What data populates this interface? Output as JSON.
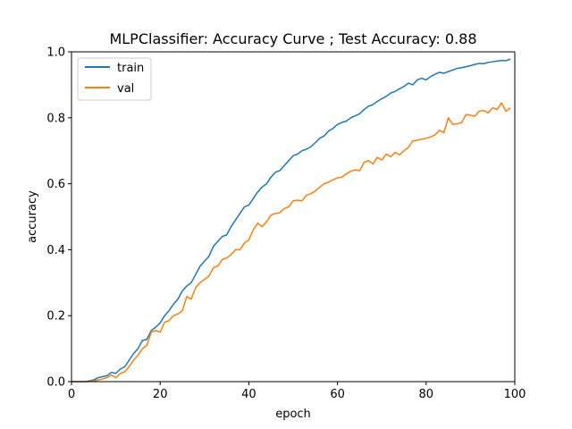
{
  "chart_data": {
    "type": "line",
    "title": "MLPClassifier: Accuracy Curve ; Test Accuracy: 0.88",
    "xlabel": "epoch",
    "ylabel": "accuracy",
    "xlim": [
      0,
      100
    ],
    "ylim": [
      0,
      1.0
    ],
    "xticks": [
      0,
      20,
      40,
      60,
      80,
      100
    ],
    "xtick_labels": [
      "0",
      "20",
      "40",
      "60",
      "80",
      "100"
    ],
    "yticks": [
      0,
      0.2,
      0.4,
      0.6,
      0.8,
      1.0
    ],
    "ytick_labels": [
      "0.0",
      "0.2",
      "0.4",
      "0.6",
      "0.8",
      "1.0"
    ],
    "grid": false,
    "legend_position": "upper-left",
    "x": [
      0,
      1,
      2,
      3,
      4,
      5,
      6,
      7,
      8,
      9,
      10,
      11,
      12,
      13,
      14,
      15,
      16,
      17,
      18,
      19,
      20,
      21,
      22,
      23,
      24,
      25,
      26,
      27,
      28,
      29,
      30,
      31,
      32,
      33,
      34,
      35,
      36,
      37,
      38,
      39,
      40,
      41,
      42,
      43,
      44,
      45,
      46,
      47,
      48,
      49,
      50,
      51,
      52,
      53,
      54,
      55,
      56,
      57,
      58,
      59,
      60,
      61,
      62,
      63,
      64,
      65,
      66,
      67,
      68,
      69,
      70,
      71,
      72,
      73,
      74,
      75,
      76,
      77,
      78,
      79,
      80,
      81,
      82,
      83,
      84,
      85,
      86,
      87,
      88,
      89,
      90,
      91,
      92,
      93,
      94,
      95,
      96,
      97,
      98,
      99
    ],
    "series": [
      {
        "name": "train",
        "color": "#1f77b4",
        "values": [
          0.0,
          0.0,
          0.0,
          0.0,
          0.002,
          0.005,
          0.012,
          0.015,
          0.018,
          0.028,
          0.025,
          0.038,
          0.045,
          0.065,
          0.085,
          0.1,
          0.125,
          0.128,
          0.155,
          0.165,
          0.178,
          0.2,
          0.215,
          0.235,
          0.25,
          0.275,
          0.29,
          0.3,
          0.325,
          0.35,
          0.365,
          0.38,
          0.41,
          0.425,
          0.44,
          0.445,
          0.47,
          0.49,
          0.51,
          0.53,
          0.535,
          0.555,
          0.575,
          0.59,
          0.6,
          0.62,
          0.635,
          0.64,
          0.655,
          0.67,
          0.685,
          0.69,
          0.7,
          0.705,
          0.712,
          0.725,
          0.738,
          0.745,
          0.76,
          0.768,
          0.78,
          0.786,
          0.79,
          0.8,
          0.806,
          0.812,
          0.825,
          0.835,
          0.84,
          0.85,
          0.858,
          0.865,
          0.875,
          0.88,
          0.888,
          0.895,
          0.905,
          0.9,
          0.915,
          0.92,
          0.915,
          0.925,
          0.932,
          0.938,
          0.935,
          0.94,
          0.945,
          0.95,
          0.952,
          0.955,
          0.958,
          0.962,
          0.965,
          0.964,
          0.968,
          0.97,
          0.972,
          0.974,
          0.973,
          0.978
        ]
      },
      {
        "name": "val",
        "color": "#ff7f0e",
        "values": [
          0.0,
          0.0,
          0.0,
          0.0,
          0.0,
          0.002,
          0.005,
          0.008,
          0.012,
          0.02,
          0.012,
          0.025,
          0.03,
          0.045,
          0.065,
          0.08,
          0.1,
          0.11,
          0.15,
          0.155,
          0.15,
          0.18,
          0.185,
          0.2,
          0.205,
          0.215,
          0.258,
          0.25,
          0.285,
          0.3,
          0.31,
          0.32,
          0.345,
          0.35,
          0.37,
          0.375,
          0.385,
          0.4,
          0.4,
          0.42,
          0.43,
          0.46,
          0.48,
          0.47,
          0.485,
          0.505,
          0.51,
          0.512,
          0.525,
          0.53,
          0.548,
          0.55,
          0.548,
          0.565,
          0.57,
          0.578,
          0.59,
          0.6,
          0.605,
          0.612,
          0.618,
          0.62,
          0.63,
          0.638,
          0.642,
          0.64,
          0.665,
          0.67,
          0.66,
          0.68,
          0.672,
          0.69,
          0.682,
          0.695,
          0.688,
          0.7,
          0.71,
          0.73,
          0.732,
          0.735,
          0.738,
          0.742,
          0.748,
          0.762,
          0.755,
          0.8,
          0.78,
          0.782,
          0.785,
          0.81,
          0.808,
          0.805,
          0.82,
          0.822,
          0.815,
          0.83,
          0.825,
          0.845,
          0.82,
          0.83
        ]
      }
    ]
  }
}
